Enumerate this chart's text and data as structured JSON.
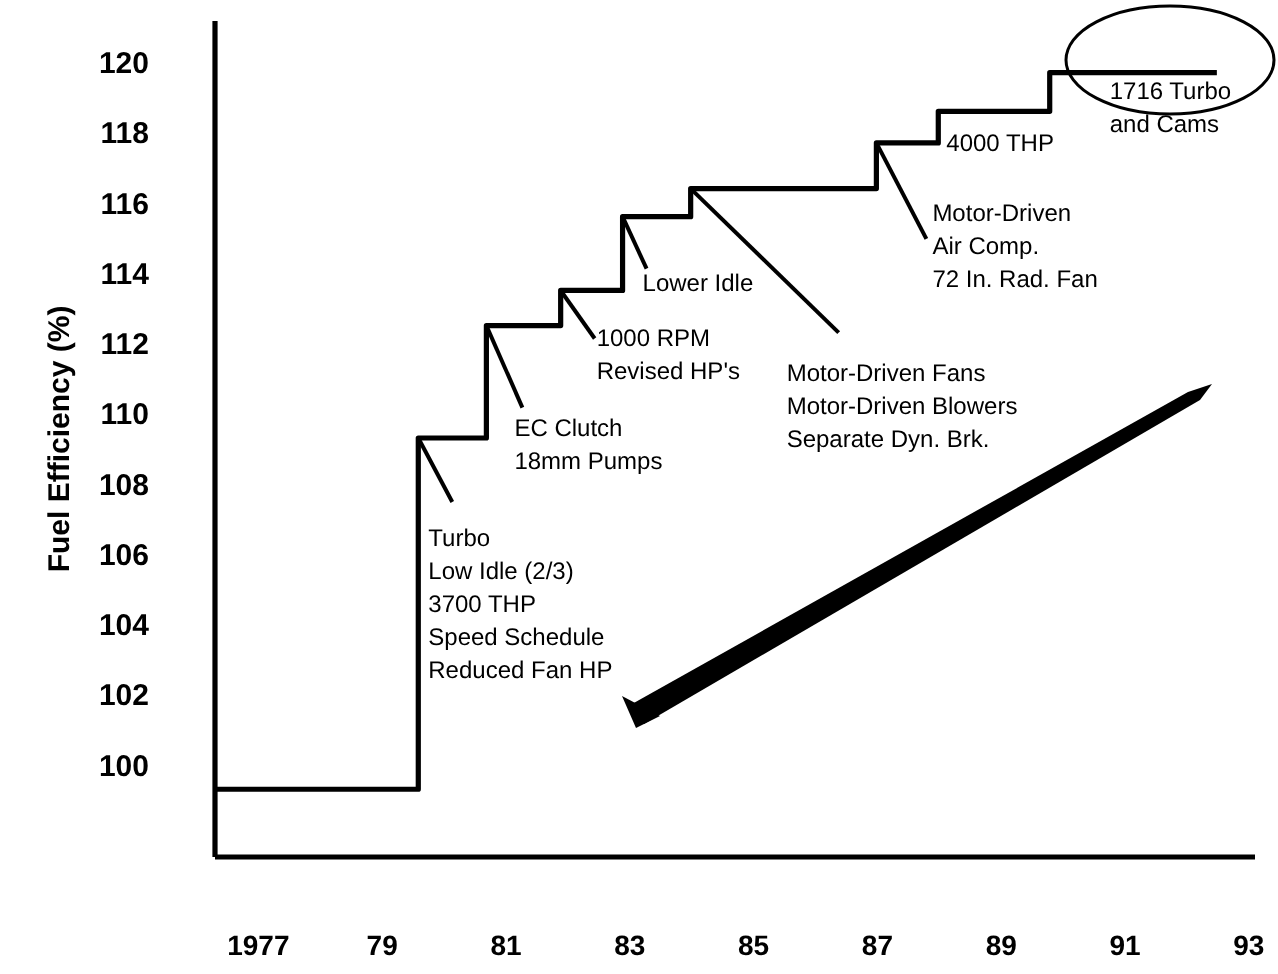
{
  "chart_data": {
    "type": "step",
    "ylabel": "Fuel Efficiency (%)",
    "x": [
      1976.3,
      1979.6,
      1980.7,
      1981.9,
      1982.9,
      1984.0,
      1987.0,
      1988.0,
      1989.8,
      1992.5
    ],
    "series": [
      {
        "color": "#000000",
        "values": [
          99.3,
          109.3,
          112.5,
          113.5,
          115.6,
          116.4,
          117.7,
          118.6,
          119.7,
          119.7
        ]
      }
    ],
    "xlim": [
      1976.3,
      1993.1
    ],
    "xticks": [
      {
        "value": 1977,
        "label": "1977"
      },
      {
        "value": 1979,
        "label": "79"
      },
      {
        "value": 1981,
        "label": "81"
      },
      {
        "value": 1983,
        "label": "83"
      },
      {
        "value": 1985,
        "label": "85"
      },
      {
        "value": 1987,
        "label": "87"
      },
      {
        "value": 1989,
        "label": "89"
      },
      {
        "value": 1991,
        "label": "91"
      },
      {
        "value": 1993,
        "label": "93"
      }
    ],
    "ylim": [
      97.4,
      121.2
    ],
    "yticks": [
      100,
      102,
      104,
      106,
      108,
      110,
      112,
      114,
      116,
      118,
      120
    ],
    "grid": false,
    "marker": "none",
    "line_style": "solid",
    "annotations": [
      {
        "text": "Turbo\nLow Idle (2/3)\n3700 THP\nSpeed Schedule\nReduced Fan HP",
        "x": 1979.6,
        "y": 109.3
      },
      {
        "text": "EC Clutch\n18mm Pumps",
        "x": 1980.7,
        "y": 112.5
      },
      {
        "text": "1000 RPM\nRevised HP's",
        "x": 1981.9,
        "y": 113.5
      },
      {
        "text": "Lower Idle",
        "x": 1982.9,
        "y": 115.6
      },
      {
        "text": "Motor-Driven Fans\nMotor-Driven Blowers\nSeparate Dyn. Brk.",
        "x": 1984.0,
        "y": 116.4
      },
      {
        "text": "Motor-Driven\nAir Comp.\n72 In. Rad. Fan",
        "x": 1987.0,
        "y": 117.7
      },
      {
        "text": "4000 THP",
        "x": 1988.0,
        "y": 118.6
      },
      {
        "text": "1716 Turbo\nand Cams",
        "x": 1989.8,
        "y": 119.7
      }
    ]
  }
}
